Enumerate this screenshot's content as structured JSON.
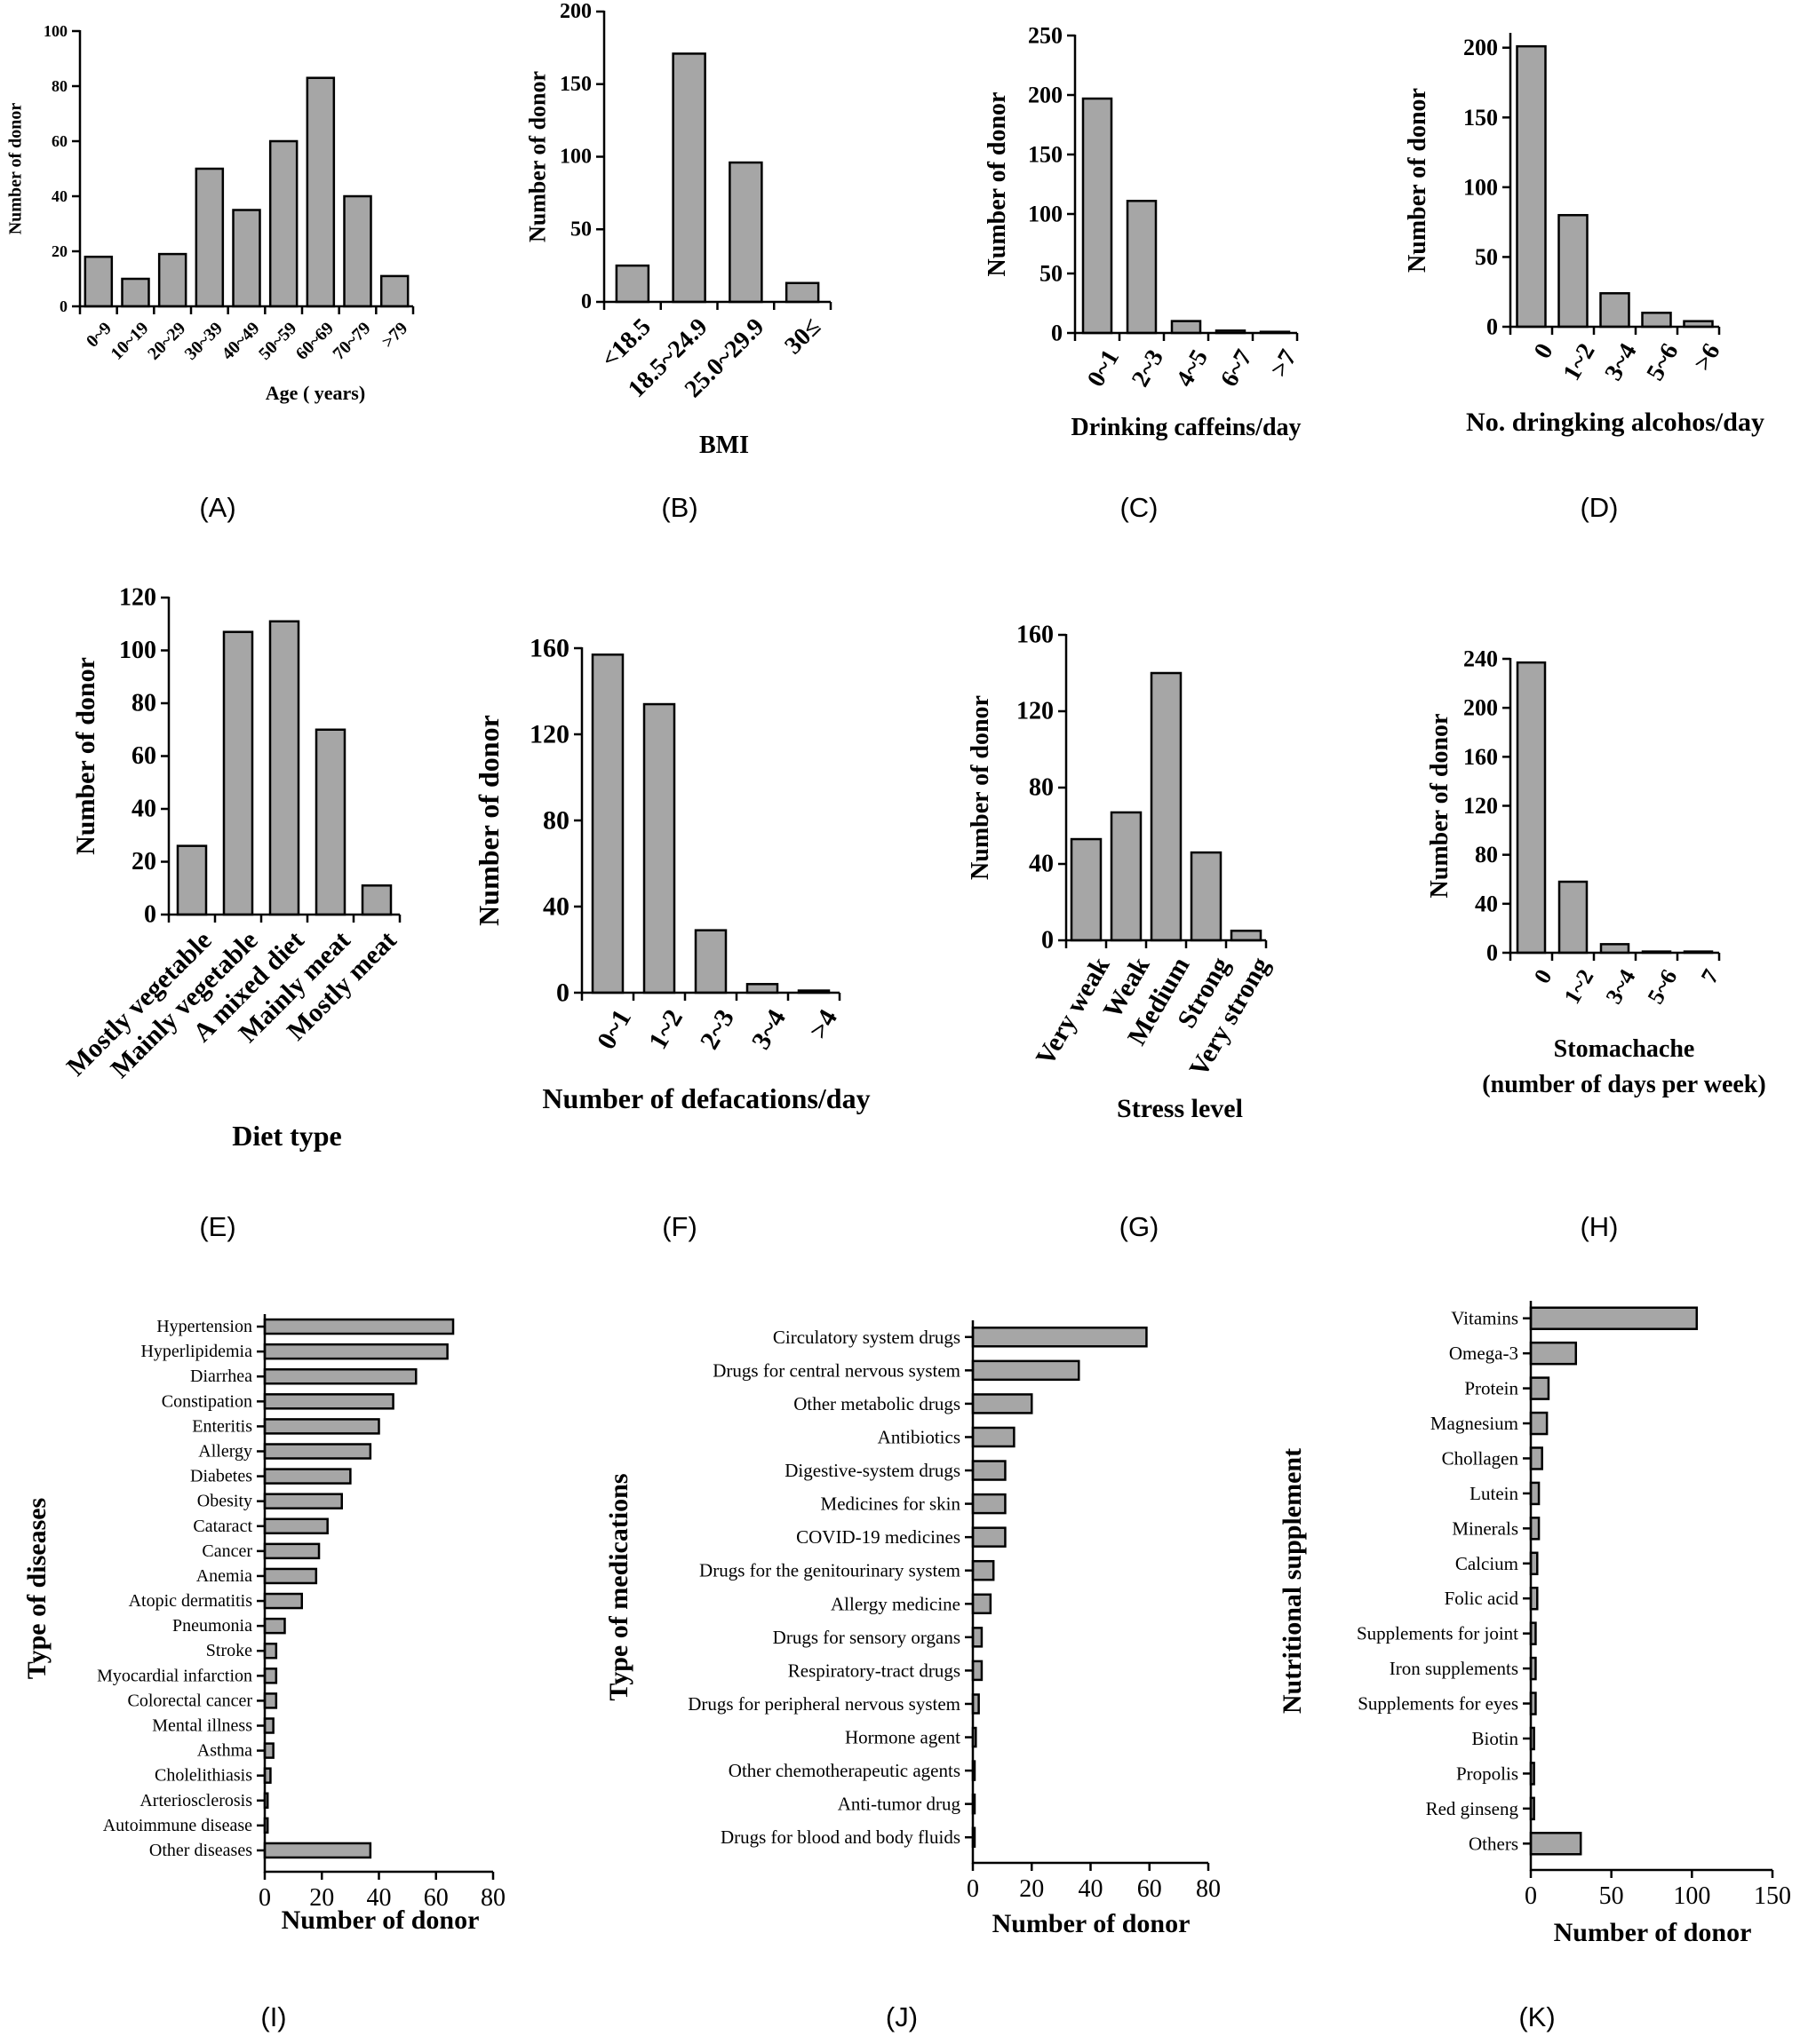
{
  "chart_data": [
    {
      "id": "A",
      "panel_label": "(A)",
      "type": "bar",
      "orientation": "vertical",
      "title": "",
      "xlabel": "Age ( years)",
      "ylabel": "Number of donor",
      "ylim": [
        0,
        100
      ],
      "yticks": [
        0,
        20,
        40,
        60,
        80,
        100
      ],
      "categories": [
        "0~9",
        "10~19",
        "20~29",
        "30~39",
        "40~49",
        "50~59",
        "60~69",
        "70~79",
        ">79"
      ],
      "values": [
        18,
        10,
        19,
        50,
        35,
        60,
        83,
        40,
        11
      ]
    },
    {
      "id": "B",
      "panel_label": "(B)",
      "type": "bar",
      "orientation": "vertical",
      "title": "",
      "xlabel": "BMI",
      "ylabel": "Number of donor",
      "ylim": [
        0,
        200
      ],
      "yticks": [
        0,
        50,
        100,
        150,
        200
      ],
      "categories": [
        "<18.5",
        "18.5~24.9",
        "25.0~29.9",
        "30≤"
      ],
      "values": [
        25,
        171,
        96,
        13
      ]
    },
    {
      "id": "C",
      "panel_label": "(C)",
      "type": "bar",
      "orientation": "vertical",
      "title": "",
      "xlabel": "Drinking caffeins/day",
      "ylabel": "Number of donor",
      "ylim": [
        0,
        250
      ],
      "yticks": [
        0,
        50,
        100,
        150,
        200,
        250
      ],
      "categories": [
        "0~1",
        "2~3",
        "4~5",
        "6~7",
        ">7"
      ],
      "values": [
        197,
        111,
        10,
        2,
        1
      ]
    },
    {
      "id": "D",
      "panel_label": "(D)",
      "type": "bar",
      "orientation": "vertical",
      "title": "",
      "xlabel": "No. dringking alcohos/day",
      "ylabel": "Number of donor",
      "ylim": [
        0,
        210
      ],
      "yticks": [
        0,
        50,
        100,
        150,
        200
      ],
      "categories": [
        "0",
        "1~2",
        "3~4",
        "5~6",
        ">6"
      ],
      "values": [
        201,
        80,
        24,
        10,
        4
      ]
    },
    {
      "id": "E",
      "panel_label": "(E)",
      "type": "bar",
      "orientation": "vertical",
      "title": "",
      "xlabel": "Diet type",
      "ylabel": "Number of donor",
      "ylim": [
        0,
        120
      ],
      "yticks": [
        0,
        20,
        40,
        60,
        80,
        100,
        120
      ],
      "categories": [
        "Mostly vegetable",
        "Mainly vegetable",
        "A mixed diet",
        "Mainly meat",
        "Mostly meat"
      ],
      "values": [
        26,
        107,
        111,
        70,
        11
      ]
    },
    {
      "id": "F",
      "panel_label": "(F)",
      "type": "bar",
      "orientation": "vertical",
      "title": "",
      "xlabel": "Number of defacations/day",
      "ylabel": "Number of donor",
      "ylim": [
        0,
        160
      ],
      "yticks": [
        0,
        40,
        80,
        120,
        160
      ],
      "categories": [
        "0~1",
        "1~2",
        "2~3",
        "3~4",
        ">4"
      ],
      "values": [
        157,
        134,
        29,
        4,
        1
      ]
    },
    {
      "id": "G",
      "panel_label": "(G)",
      "type": "bar",
      "orientation": "vertical",
      "title": "",
      "xlabel": "Stress level",
      "ylabel": "Number of donor",
      "ylim": [
        0,
        160
      ],
      "yticks": [
        0,
        40,
        80,
        120,
        160
      ],
      "categories": [
        "Very weak",
        "Weak",
        "Medium",
        "Strong",
        "Very strong"
      ],
      "values": [
        53,
        67,
        140,
        46,
        5
      ]
    },
    {
      "id": "H",
      "panel_label": "(H)",
      "type": "bar",
      "orientation": "vertical",
      "title": "",
      "xlabel": "Stomachache",
      "xlabel2": "(number of days per week)",
      "ylabel": "Number of donor",
      "ylim": [
        0,
        240
      ],
      "yticks": [
        0,
        40,
        80,
        120,
        160,
        200,
        240
      ],
      "categories": [
        "0",
        "1~2",
        "3~4",
        "5~6",
        "7"
      ],
      "values": [
        237,
        58,
        7,
        1,
        1
      ]
    },
    {
      "id": "I",
      "panel_label": "(I)",
      "type": "bar",
      "orientation": "horizontal",
      "title": "",
      "xlabel": "Number of donor",
      "ylabel": "Type of diseases",
      "xlim": [
        0,
        80
      ],
      "xticks": [
        0,
        20,
        40,
        60,
        80
      ],
      "categories": [
        "Hypertension",
        "Hyperlipidemia",
        "Diarrhea",
        "Constipation",
        "Enteritis",
        "Allergy",
        "Diabetes",
        "Obesity",
        "Cataract",
        "Cancer",
        "Anemia",
        "Atopic dermatitis",
        "Pneumonia",
        "Stroke",
        "Myocardial infarction",
        "Colorectal cancer",
        "Mental illness",
        "Asthma",
        "Cholelithiasis",
        "Arteriosclerosis",
        "Autoimmune disease",
        "Other diseases"
      ],
      "values": [
        66,
        64,
        53,
        45,
        40,
        37,
        30,
        27,
        22,
        19,
        18,
        13,
        7,
        4,
        4,
        4,
        3,
        3,
        2,
        1,
        1,
        37
      ]
    },
    {
      "id": "J",
      "panel_label": "(J)",
      "type": "bar",
      "orientation": "horizontal",
      "title": "",
      "xlabel": "Number of donor",
      "ylabel": "Type of medications",
      "xlim": [
        0,
        80
      ],
      "xticks": [
        0,
        20,
        40,
        60,
        80
      ],
      "categories": [
        "Circulatory system drugs",
        "Drugs for central nervous system",
        "Other metabolic drugs",
        "Antibiotics",
        "Digestive-system drugs",
        "Medicines for skin",
        "COVID-19 medicines",
        "Drugs for the genitourinary system",
        "Allergy medicine",
        "Drugs for sensory organs",
        "Respiratory-tract drugs",
        "Drugs for peripheral nervous system",
        "Hormone agent",
        "Other chemotherapeutic agents",
        "Anti-tumor drug",
        "Drugs for blood and body fluids"
      ],
      "values": [
        59,
        36,
        20,
        14,
        11,
        11,
        11,
        7,
        6,
        3,
        3,
        2,
        1,
        0.5,
        0.5,
        0.5
      ]
    },
    {
      "id": "K",
      "panel_label": "(K)",
      "type": "bar",
      "orientation": "horizontal",
      "title": "",
      "xlabel": "Number of donor",
      "ylabel": "Nutritional supplement",
      "xlim": [
        0,
        150
      ],
      "xticks": [
        0,
        50,
        100,
        150
      ],
      "categories": [
        "Vitamins",
        "Omega-3",
        "Protein",
        "Magnesium",
        "Chollagen",
        "Lutein",
        "Minerals",
        "Calcium",
        "Folic acid",
        "Supplements for joint",
        "Iron supplements",
        "Supplements for eyes",
        "Biotin",
        "Propolis",
        "Red ginseng",
        "Others"
      ],
      "values": [
        103,
        28,
        11,
        10,
        7,
        5,
        5,
        4,
        4,
        3,
        3,
        3,
        2,
        2,
        2,
        31
      ]
    }
  ]
}
